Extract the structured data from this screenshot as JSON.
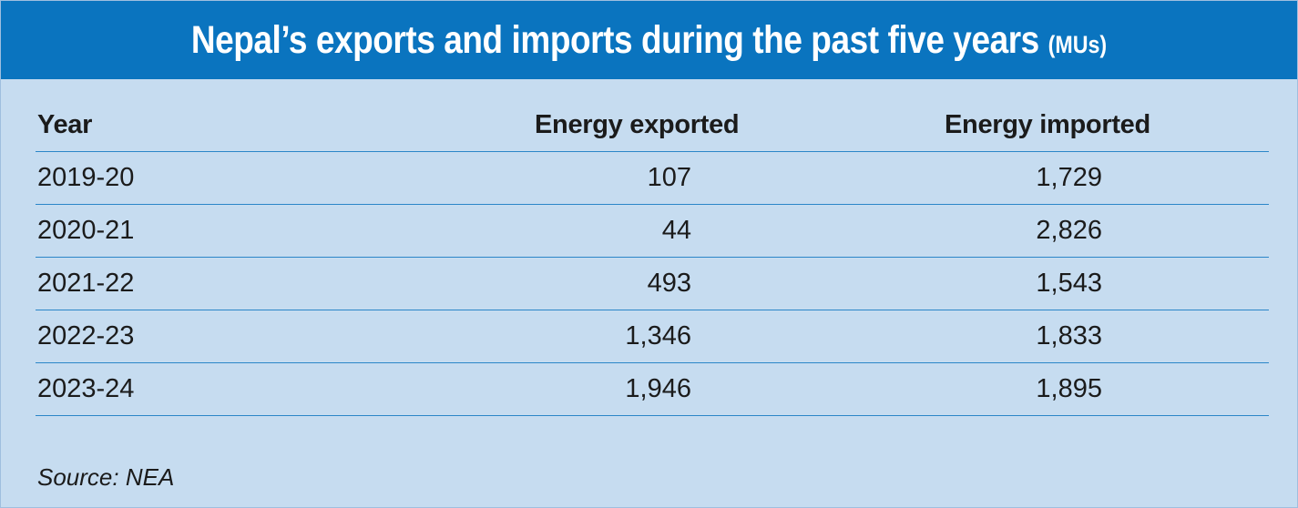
{
  "title": "Nepal’s exports and imports during the past five years",
  "unit": "(MUs)",
  "chart_data": {
    "type": "table",
    "columns": [
      "Year",
      "Energy exported",
      "Energy imported"
    ],
    "rows": [
      {
        "year": "2019-20",
        "exported": "107",
        "imported": "1,729"
      },
      {
        "year": "2020-21",
        "exported": "44",
        "imported": "2,826"
      },
      {
        "year": "2021-22",
        "exported": "493",
        "imported": "1,543"
      },
      {
        "year": "2022-23",
        "exported": "1,346",
        "imported": "1,833"
      },
      {
        "year": "2023-24",
        "exported": "1,946",
        "imported": "1,895"
      }
    ]
  },
  "source": "Source: NEA",
  "colors": {
    "banner": "#0a74bf",
    "background": "#c6dcf0",
    "rule": "#2b86c8"
  }
}
